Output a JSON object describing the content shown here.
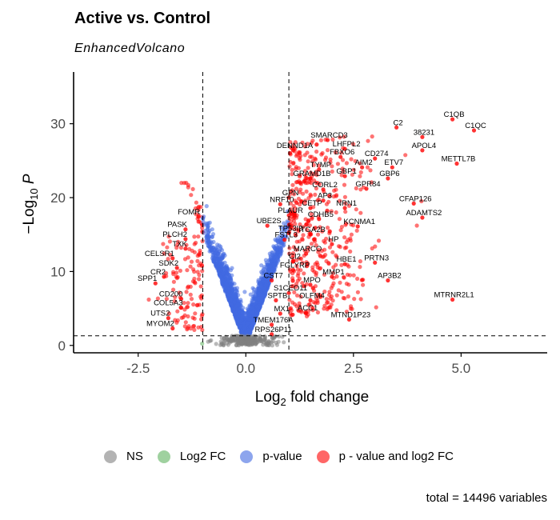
{
  "chart_data": {
    "type": "scatter",
    "title": "Active vs. Control",
    "subtitle": "EnhancedVolcano",
    "xlabel": "Log2 fold change",
    "ylabel": "-Log10 P",
    "xlim": [
      -4,
      7
    ],
    "ylim": [
      -1,
      37
    ],
    "xticks": [
      "-2.5",
      "0.0",
      "2.5",
      "5.0"
    ],
    "yticks": [
      "0",
      "10",
      "20",
      "30"
    ],
    "fc_cutoff": 1,
    "p_cutoff_log10": 1.3,
    "legend": [
      {
        "name": "NS",
        "color": "#808080"
      },
      {
        "name": "Log2 FC",
        "color": "#5fb35f"
      },
      {
        "name": "p-value",
        "color": "#4169e1"
      },
      {
        "name": "p - value and log2 FC",
        "color": "#ff0000"
      }
    ],
    "caption": "total = 14496 variables",
    "labeled_genes": [
      {
        "label": "C1QB",
        "x": 4.8,
        "y": 30.6
      },
      {
        "label": "C1QC",
        "x": 5.3,
        "y": 29.1
      },
      {
        "label": "C2",
        "x": 3.5,
        "y": 29.5
      },
      {
        "label": "38231",
        "x": 4.1,
        "y": 28.2
      },
      {
        "label": "SMARCD3",
        "x": 1.9,
        "y": 27.8
      },
      {
        "label": "LHFPL2",
        "x": 2.3,
        "y": 26.6
      },
      {
        "label": "DENND1A",
        "x": 1.1,
        "y": 26.4
      },
      {
        "label": "APOL4",
        "x": 4.1,
        "y": 26.4
      },
      {
        "label": "FBXO6",
        "x": 2.2,
        "y": 25.5
      },
      {
        "label": "CD274",
        "x": 3.0,
        "y": 25.3
      },
      {
        "label": "METTL7B",
        "x": 4.9,
        "y": 24.6
      },
      {
        "label": "AIM2",
        "x": 2.7,
        "y": 24.1
      },
      {
        "label": "ETV7",
        "x": 3.4,
        "y": 24.1
      },
      {
        "label": "TYMP",
        "x": 1.7,
        "y": 23.8
      },
      {
        "label": "GRAMD1B",
        "x": 1.5,
        "y": 22.6
      },
      {
        "label": "GBP1",
        "x": 2.3,
        "y": 22.9
      },
      {
        "label": "GBP6",
        "x": 3.3,
        "y": 22.6
      },
      {
        "label": "CORL2",
        "x": 1.8,
        "y": 21.1
      },
      {
        "label": "GPR84",
        "x": 2.8,
        "y": 21.2
      },
      {
        "label": "GPN",
        "x": 1.0,
        "y": 20.0
      },
      {
        "label": "AP3",
        "x": 1.8,
        "y": 19.6
      },
      {
        "label": "CFAP126",
        "x": 3.9,
        "y": 19.2
      },
      {
        "label": "NRF10",
        "x": 0.8,
        "y": 19.1
      },
      {
        "label": "CETP",
        "x": 1.5,
        "y": 18.6
      },
      {
        "label": "NRN1",
        "x": 2.3,
        "y": 18.6
      },
      {
        "label": "PLAUR",
        "x": 1.0,
        "y": 17.6
      },
      {
        "label": "ADAMTS2",
        "x": 4.1,
        "y": 17.3
      },
      {
        "label": "FOMR",
        "x": -1.1,
        "y": 17.4
      },
      {
        "label": "CDHB5",
        "x": 1.7,
        "y": 17.1
      },
      {
        "label": "UBE2S",
        "x": 0.5,
        "y": 16.2
      },
      {
        "label": "KCNMA1",
        "x": 2.6,
        "y": 16.1
      },
      {
        "label": "PASK",
        "x": -1.4,
        "y": 15.7
      },
      {
        "label": "TP53I3",
        "x": 1.0,
        "y": 15.2
      },
      {
        "label": "ITGA2B",
        "x": 1.5,
        "y": 15.0
      },
      {
        "label": "PLCH2",
        "x": -1.4,
        "y": 14.4
      },
      {
        "label": "FSTL3",
        "x": 0.9,
        "y": 14.3
      },
      {
        "label": "HP",
        "x": 2.0,
        "y": 13.7
      },
      {
        "label": "TXK",
        "x": -1.4,
        "y": 13.1
      },
      {
        "label": "MARCO",
        "x": 1.4,
        "y": 12.4
      },
      {
        "label": "CELSR1",
        "x": -1.7,
        "y": 11.8
      },
      {
        "label": "CI2",
        "x": 1.1,
        "y": 11.4
      },
      {
        "label": "PRTN3",
        "x": 3.0,
        "y": 11.2
      },
      {
        "label": "HBE1",
        "x": 2.3,
        "y": 11.0
      },
      {
        "label": "SDK2",
        "x": -1.6,
        "y": 10.5
      },
      {
        "label": "FGLYRP",
        "x": 1.1,
        "y": 10.2
      },
      {
        "label": "CR2",
        "x": -1.9,
        "y": 9.3
      },
      {
        "label": "MMP1",
        "x": 2.0,
        "y": 9.3
      },
      {
        "label": "AP3B2",
        "x": 3.3,
        "y": 8.8
      },
      {
        "label": "CST7",
        "x": 0.6,
        "y": 8.8
      },
      {
        "label": "SPP1",
        "x": -2.1,
        "y": 8.4
      },
      {
        "label": "MPO",
        "x": 1.5,
        "y": 8.2
      },
      {
        "label": "S1CEO11",
        "x": 1.0,
        "y": 7.1
      },
      {
        "label": "CD200",
        "x": -1.5,
        "y": 6.3
      },
      {
        "label": "MTRNR2L1",
        "x": 4.8,
        "y": 6.2
      },
      {
        "label": "SPTB",
        "x": 0.7,
        "y": 6.1
      },
      {
        "label": "OLFM4",
        "x": 1.5,
        "y": 6.1
      },
      {
        "label": "COL5A3",
        "x": -1.5,
        "y": 5.1
      },
      {
        "label": "MX1",
        "x": 0.8,
        "y": 4.3
      },
      {
        "label": "ACC1",
        "x": 1.4,
        "y": 4.4
      },
      {
        "label": "UTS2",
        "x": -1.8,
        "y": 3.7
      },
      {
        "label": "MTND1P23",
        "x": 2.4,
        "y": 3.5
      },
      {
        "label": "TMEM176A",
        "x": 0.6,
        "y": 2.8
      },
      {
        "label": "MYOM2",
        "x": -1.7,
        "y": 2.3
      },
      {
        "label": "RPS26P11",
        "x": 0.6,
        "y": 1.5
      }
    ]
  }
}
